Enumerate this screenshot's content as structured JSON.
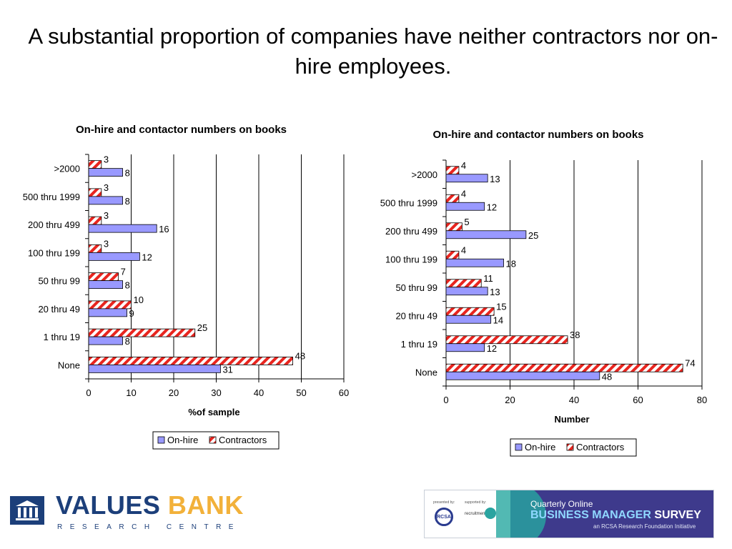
{
  "slide": {
    "title": "A substantial proportion of companies have neither contractors nor on-hire employees."
  },
  "colors": {
    "onhire_fill": "#9999ff",
    "contractors_stripe": "#e8251f",
    "gridline": "#000000",
    "brand_blue": "#1c3f7a",
    "brand_gold": "#f2b13a",
    "survey_band": "#3e3a8c"
  },
  "chart_data": [
    {
      "type": "bar",
      "orientation": "horizontal",
      "title": "On-hire and contactor numbers on books",
      "xlabel": "%of sample",
      "ylabel": "",
      "categories": [
        ">2000",
        "500 thru 1999",
        "200 thru 499",
        "100 thru 199",
        "50 thru 99",
        "20 thru 49",
        "1 thru 19",
        "None"
      ],
      "series": [
        {
          "name": "Contractors",
          "values": [
            3,
            3,
            3,
            3,
            7,
            10,
            25,
            48
          ]
        },
        {
          "name": "On-hire",
          "values": [
            8,
            8,
            16,
            12,
            8,
            9,
            8,
            31
          ]
        }
      ],
      "xlim": [
        0,
        60
      ],
      "xticks": [
        0,
        10,
        20,
        30,
        40,
        50,
        60
      ],
      "grid": "vertical",
      "legend": {
        "position": "bottom",
        "entries": [
          "On-hire",
          "Contractors"
        ]
      }
    },
    {
      "type": "bar",
      "orientation": "horizontal",
      "title": "On-hire and contactor numbers on books",
      "xlabel": "Number",
      "ylabel": "",
      "categories": [
        ">2000",
        "500 thru 1999",
        "200 thru 499",
        "100 thru 199",
        "50 thru 99",
        "20 thru 49",
        "1 thru 19",
        "None"
      ],
      "series": [
        {
          "name": "Contractors",
          "values": [
            4,
            4,
            5,
            4,
            11,
            15,
            38,
            74
          ]
        },
        {
          "name": "On-hire",
          "values": [
            13,
            12,
            25,
            18,
            13,
            14,
            12,
            48
          ]
        }
      ],
      "xlim": [
        0,
        80
      ],
      "xticks": [
        0,
        20,
        40,
        60,
        80
      ],
      "grid": "vertical",
      "legend": {
        "position": "bottom",
        "entries": [
          "On-hire",
          "Contractors"
        ]
      }
    }
  ],
  "footer": {
    "values_bank": {
      "word1": "VALUES",
      "word2": "BANK",
      "subtitle": "RESEARCH CENTRE",
      "icon": "bank-building-icon"
    },
    "survey": {
      "presented_by": "presented by:",
      "supported_by": "supported by:",
      "rcsa": "RCSA",
      "recruitment": "recruitment",
      "line1": "Quarterly Online",
      "line2_a": "BUSINESS MANAGER",
      "line2_b": "SURVEY",
      "line3": "an RCSA Research Foundation Initiative"
    }
  }
}
